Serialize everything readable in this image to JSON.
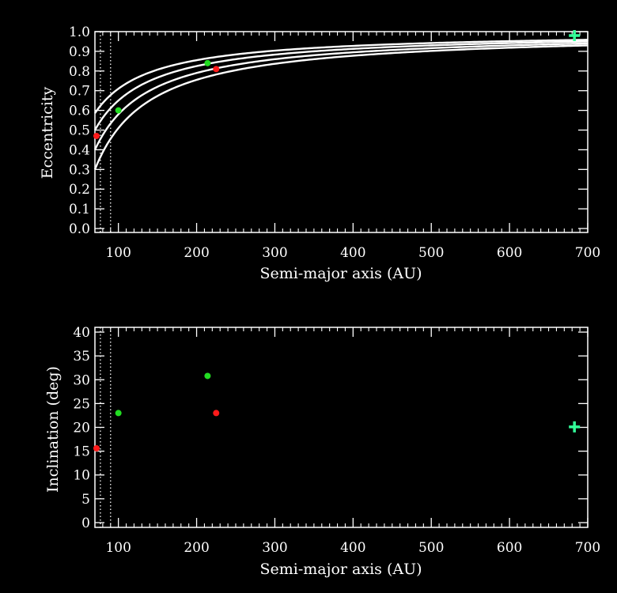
{
  "colors": {
    "background": "#000000",
    "axes": "#ffffff",
    "green_points": "#22dd22",
    "red_points": "#ff1a1a",
    "cross": "#33ff99"
  },
  "chart_data": [
    {
      "type": "line",
      "xlabel": "Semi-major axis (AU)",
      "ylabel": "Eccentricity",
      "xlim": [
        70,
        700
      ],
      "ylim": [
        -0.02,
        1.0
      ],
      "x_ticks": [
        100,
        200,
        300,
        400,
        500,
        600,
        700
      ],
      "y_ticks": [
        0.0,
        0.1,
        0.2,
        0.3,
        0.4,
        0.5,
        0.6,
        0.7,
        0.8,
        0.9,
        1.0
      ],
      "vertical_dotted_lines_x": [
        77,
        90
      ],
      "curves": [
        {
          "description": "constant pericenter",
          "pericenter_au": 49,
          "x_range": [
            70,
            700
          ]
        },
        {
          "description": "constant pericenter",
          "pericenter_au": 42,
          "x_range": [
            70,
            700
          ]
        },
        {
          "description": "constant pericenter",
          "pericenter_au": 35,
          "x_range": [
            70,
            700
          ]
        },
        {
          "description": "constant pericenter",
          "pericenter_au": 29,
          "x_range": [
            70,
            700
          ]
        }
      ],
      "points_green": [
        {
          "x": 100,
          "y": 0.6
        },
        {
          "x": 214,
          "y": 0.84
        }
      ],
      "points_red": [
        {
          "x": 72,
          "y": 0.47
        },
        {
          "x": 225,
          "y": 0.81
        }
      ],
      "cross_marker": {
        "x": 683,
        "y": 0.98
      }
    },
    {
      "type": "scatter",
      "xlabel": "Semi-major axis (AU)",
      "ylabel": "Inclination (deg)",
      "xlim": [
        70,
        700
      ],
      "ylim": [
        -1,
        41
      ],
      "x_ticks": [
        100,
        200,
        300,
        400,
        500,
        600,
        700
      ],
      "y_ticks": [
        0,
        5,
        10,
        15,
        20,
        25,
        30,
        35,
        40
      ],
      "vertical_dotted_lines_x": [
        77,
        90
      ],
      "points_green": [
        {
          "x": 100,
          "y": 23
        },
        {
          "x": 214,
          "y": 30.8
        }
      ],
      "points_red": [
        {
          "x": 72,
          "y": 15.6
        },
        {
          "x": 225,
          "y": 23
        }
      ],
      "cross_marker": {
        "x": 683,
        "y": 20.1
      }
    }
  ]
}
